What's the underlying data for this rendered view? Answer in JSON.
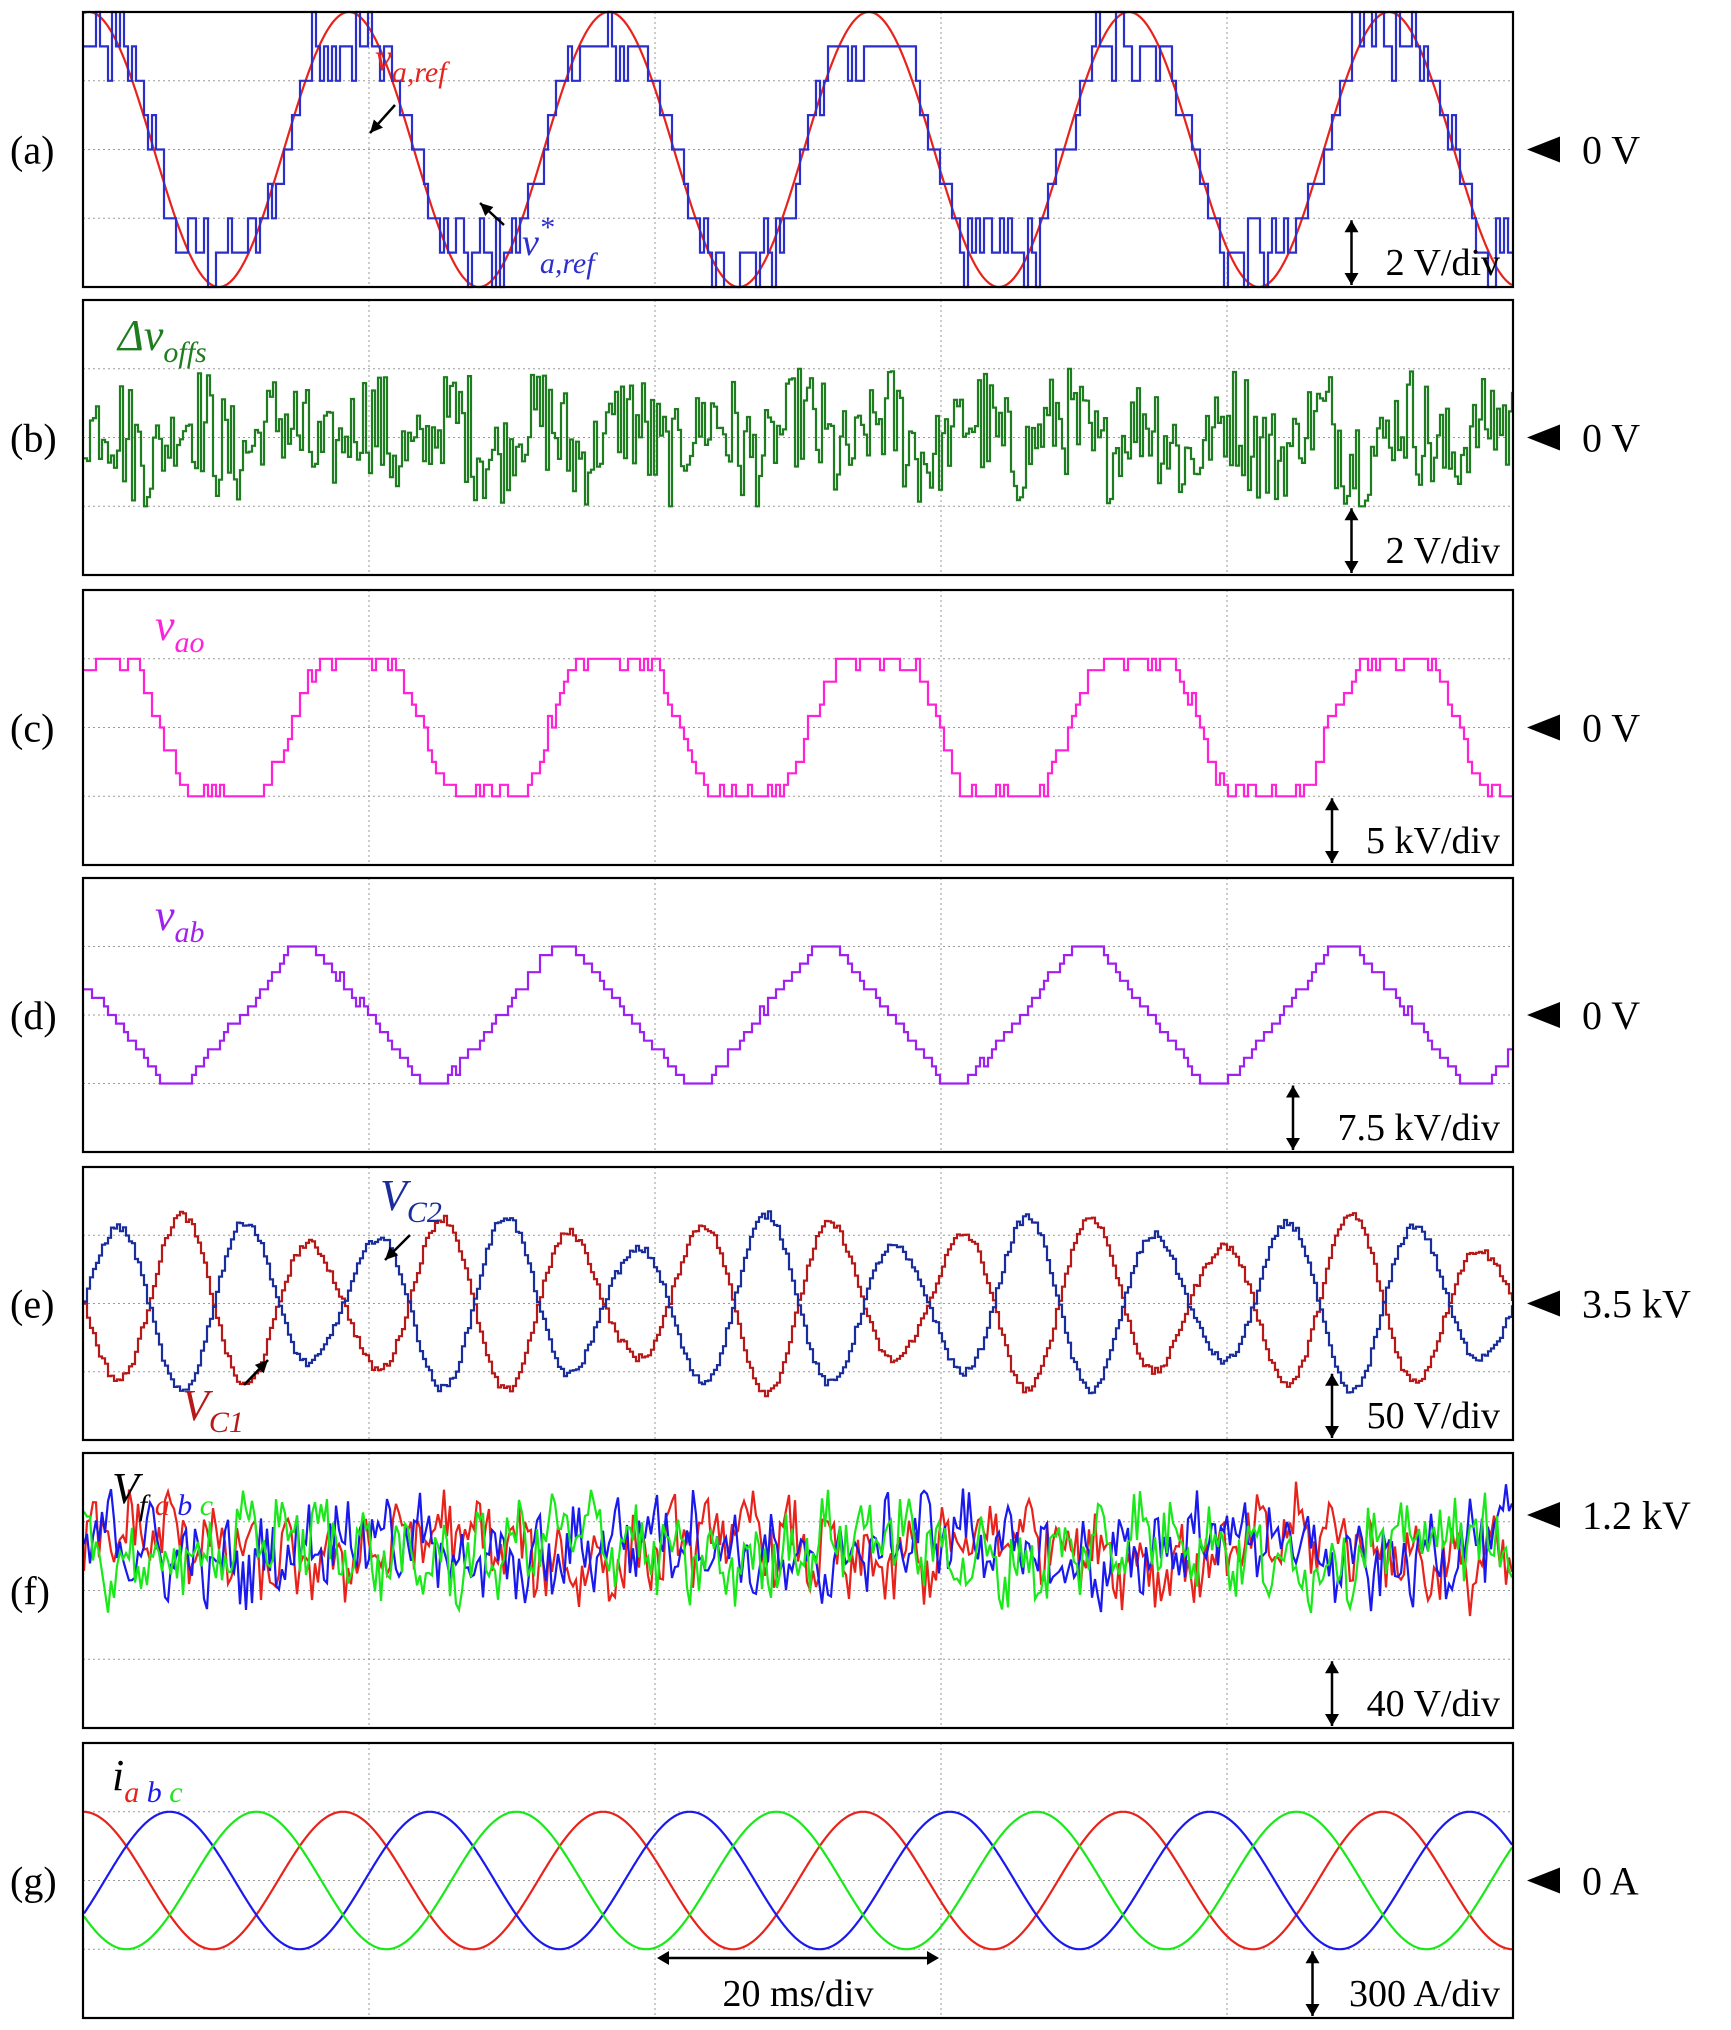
{
  "colors": {
    "red": "#e8231b",
    "blue": "#2b2fcc",
    "green": "#1e7d1e",
    "magenta": "#ff22d8",
    "purple": "#a020f0",
    "darkblue": "#1a2d9c",
    "darkred": "#b71818",
    "brightgreen": "#19e819",
    "brightblue": "#1a1aee"
  },
  "chart_data": [
    {
      "type": "line",
      "id": "a",
      "panel_label": "(a)",
      "marker": "0 V",
      "scale": "2 V/div",
      "series": [
        {
          "name": "v_a,ref",
          "shape": "sine",
          "amplitude_div": 2.0,
          "color": "red"
        },
        {
          "name": "v*_a,ref",
          "shape": "stepped-trapezoid",
          "amplitude_div": 2.0,
          "color": "blue"
        }
      ],
      "annotations": [
        {
          "text": "v",
          "sub": "a,ref",
          "sup": "",
          "color": "red"
        },
        {
          "text": "v",
          "sub": "a,ref",
          "sup": "*",
          "color": "blue"
        }
      ]
    },
    {
      "type": "line",
      "id": "b",
      "panel_label": "(b)",
      "marker": "0 V",
      "scale": "2 V/div",
      "series": [
        {
          "name": "Δv_offs",
          "shape": "dense-switching-ripple",
          "amplitude_div": 1.0,
          "color": "green"
        }
      ],
      "annotations": [
        {
          "text": "Δv",
          "sub": "offs",
          "sup": "",
          "color": "green"
        }
      ]
    },
    {
      "type": "line",
      "id": "c",
      "panel_label": "(c)",
      "marker": "0 V",
      "scale": "5 kV/div",
      "series": [
        {
          "name": "v_ao",
          "shape": "stepped-trapezoid",
          "amplitude_div": 1.0,
          "color": "magenta"
        }
      ],
      "annotations": [
        {
          "text": "v",
          "sub": "ao",
          "sup": "",
          "color": "magenta"
        }
      ]
    },
    {
      "type": "line",
      "id": "d",
      "panel_label": "(d)",
      "marker": "0 V",
      "scale": "7.5 kV/div",
      "series": [
        {
          "name": "v_ab",
          "shape": "stepped-triangle",
          "amplitude_div": 1.0,
          "color": "purple"
        }
      ],
      "annotations": [
        {
          "text": "v",
          "sub": "ab",
          "sup": "",
          "color": "purple"
        }
      ]
    },
    {
      "type": "line",
      "id": "e",
      "panel_label": "(e)",
      "marker": "3.5 kV",
      "scale": "50 V/div",
      "series": [
        {
          "name": "V_C1",
          "shape": "ripple",
          "amplitude_div": 1.3,
          "color": "darkred"
        },
        {
          "name": "V_C2",
          "shape": "ripple",
          "amplitude_div": 1.3,
          "color": "darkblue"
        }
      ],
      "annotations": [
        {
          "text": "V",
          "sub": "C2",
          "sup": "",
          "color": "darkblue"
        },
        {
          "text": "V",
          "sub": "C1",
          "sup": "",
          "color": "darkred"
        }
      ]
    },
    {
      "type": "line",
      "id": "f",
      "panel_label": "(f)",
      "marker": "1.2 kV",
      "scale": "40 V/div",
      "series": [
        {
          "name": "V_fa",
          "shape": "noise",
          "color": "red"
        },
        {
          "name": "V_fb",
          "shape": "noise",
          "color": "brightblue"
        },
        {
          "name": "V_fc",
          "shape": "noise",
          "color": "brightgreen"
        }
      ],
      "annotations": [
        {
          "text": "V",
          "sub_parts": [
            "f",
            "a",
            "b",
            "c"
          ],
          "color": "black"
        }
      ]
    },
    {
      "type": "line",
      "id": "g",
      "panel_label": "(g)",
      "marker": "0 A",
      "scale": "300 A/div",
      "time_scale": "20 ms/div",
      "series": [
        {
          "name": "i_a",
          "shape": "sine",
          "amplitude_div": 1.0,
          "color": "red"
        },
        {
          "name": "i_b",
          "shape": "sine",
          "amplitude_div": 1.0,
          "color": "brightblue"
        },
        {
          "name": "i_c",
          "shape": "sine",
          "amplitude_div": 1.0,
          "color": "brightgreen"
        }
      ],
      "annotations": [
        {
          "text": "i",
          "sub_parts": [
            "a",
            "b",
            "c"
          ],
          "color": "black"
        }
      ]
    }
  ],
  "time": {
    "divisions": 5,
    "cycles_per_division": 1.1
  }
}
